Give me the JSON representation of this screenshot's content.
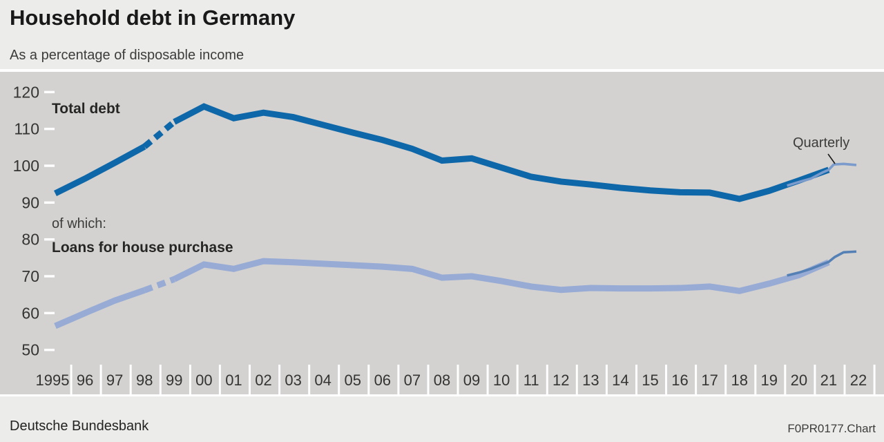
{
  "header": {
    "title": "Household debt in Germany",
    "subtitle": "As a percentage of disposable income"
  },
  "footer": {
    "source": "Deutsche Bundesbank",
    "code": "F0PR0177.Chart"
  },
  "labels": {
    "total": "Total debt",
    "of_which": "of which:",
    "housing": "Loans for house purchase",
    "quarterly": "Quarterly"
  },
  "colors": {
    "header_bg": "#ECECEB",
    "plot_bg": "#D3D2D1",
    "total_line": "#0E67A8",
    "housing_line": "#97ABD4",
    "total_quarterly_line": "#7A9BCB",
    "housing_quarterly_line": "#5480B5",
    "axis_text": "#343433",
    "tick_white": "#FFFFFF",
    "pointer": "#1A1A1A"
  },
  "chart_data": {
    "type": "line",
    "title": "Household debt in Germany",
    "subtitle": "As a percentage of disposable income",
    "ylabel": "% of disposable income",
    "ylim": [
      50,
      120
    ],
    "yticks": [
      120,
      110,
      100,
      90,
      80,
      70,
      60,
      50
    ],
    "x_years": [
      1995,
      1996,
      1997,
      1998,
      1999,
      2000,
      2001,
      2002,
      2003,
      2004,
      2005,
      2006,
      2007,
      2008,
      2009,
      2010,
      2011,
      2012,
      2013,
      2014,
      2015,
      2016,
      2017,
      2018,
      2019,
      2020,
      2021
    ],
    "xticklabels": [
      "1995",
      "96",
      "97",
      "98",
      "99",
      "00",
      "01",
      "02",
      "03",
      "04",
      "05",
      "06",
      "07",
      "08",
      "09",
      "10",
      "11",
      "12",
      "13",
      "14",
      "15",
      "16",
      "17",
      "18",
      "19",
      "20",
      "21",
      "22"
    ],
    "series_break_between_years": [
      1998,
      1999
    ],
    "grid": false,
    "legend_position": "inline annotations",
    "series": [
      {
        "name": "Total debt",
        "frequency": "annual",
        "values": [
          92.5,
          96.5,
          100.8,
          105.2,
          111.9,
          116.1,
          112.9,
          114.4,
          113.2,
          111.1,
          109.0,
          107.0,
          104.6,
          101.4,
          102.0,
          99.5,
          97.0,
          95.7,
          94.9,
          94.0,
          93.3,
          92.8,
          92.7,
          91.0,
          93.2,
          96.0,
          98.9
        ]
      },
      {
        "name": "Loans for house purchase",
        "frequency": "annual",
        "values": [
          56.5,
          60.0,
          63.4,
          66.2,
          69.2,
          73.2,
          72.0,
          74.1,
          73.8,
          73.4,
          73.0,
          72.6,
          72.0,
          69.6,
          70.0,
          68.7,
          67.2,
          66.3,
          66.8,
          66.7,
          66.7,
          66.8,
          67.2,
          66.0,
          68.0,
          70.3,
          73.8
        ]
      },
      {
        "name": "Total debt (quarterly)",
        "frequency": "quarterly",
        "x": [
          2019.6,
          2020.0,
          2020.4,
          2020.8,
          2021.0,
          2021.17,
          2021.5,
          2021.93
        ],
        "values": [
          94.6,
          95.6,
          96.5,
          98.2,
          98.9,
          100.35,
          100.5,
          100.2
        ]
      },
      {
        "name": "Loans for house purchase (quarterly)",
        "frequency": "quarterly",
        "x": [
          2019.6,
          2020.0,
          2020.4,
          2020.8,
          2021.0,
          2021.2,
          2021.5,
          2021.93
        ],
        "values": [
          70.2,
          71.0,
          72.0,
          73.3,
          73.9,
          75.2,
          76.5,
          76.7
        ]
      }
    ],
    "annotations": [
      "Total debt",
      "of which:",
      "Loans for house purchase",
      "Quarterly"
    ]
  }
}
